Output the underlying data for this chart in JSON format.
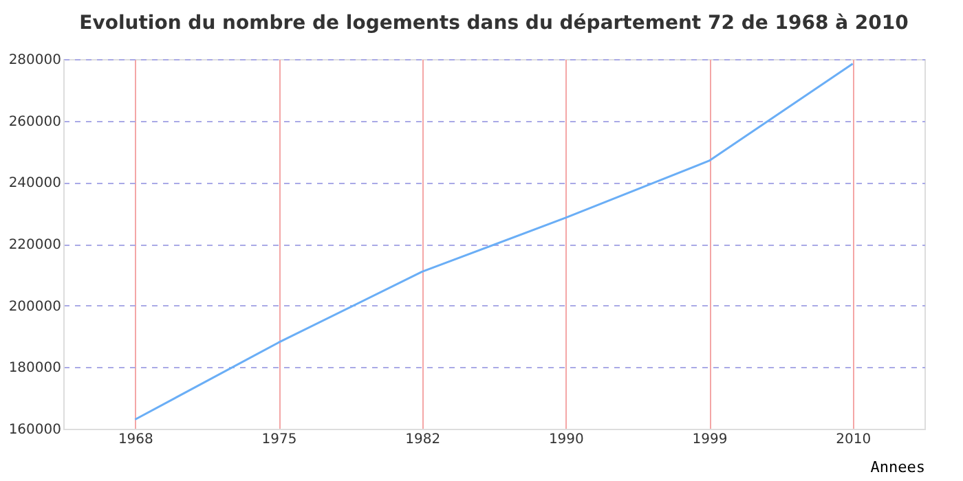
{
  "chart_data": {
    "type": "line",
    "title": "Evolution du nombre de logements dans du département 72 de 1968 à 2010",
    "xlabel": "Annees",
    "categories": [
      "1968",
      "1975",
      "1982",
      "1990",
      "1999",
      "2010"
    ],
    "series": [
      {
        "color": "#6aaef6",
        "values": [
          163000,
          188000,
          211000,
          228500,
          247000,
          278500
        ]
      }
    ],
    "ylim": [
      160000,
      280000
    ],
    "yticks": [
      160000,
      180000,
      200000,
      220000,
      240000,
      260000,
      280000
    ],
    "grid": true,
    "legend": false,
    "marker": "none",
    "line_style": "solid"
  }
}
